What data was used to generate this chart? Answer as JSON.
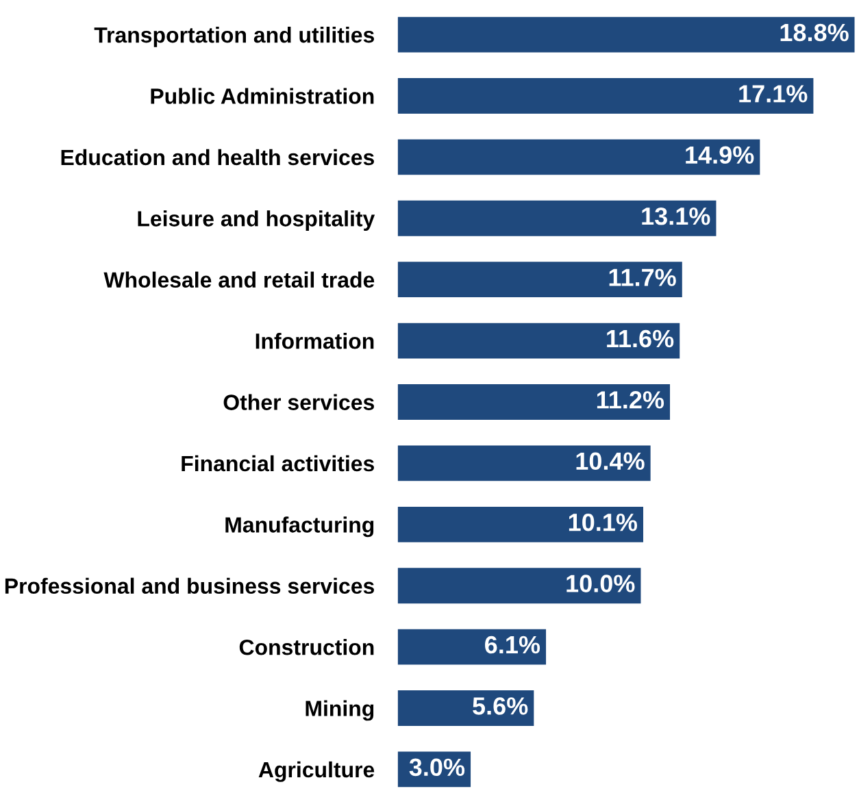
{
  "chart_data": {
    "type": "bar",
    "orientation": "horizontal",
    "categories": [
      "Transportation and utilities",
      "Public Administration",
      "Education and health services",
      "Leisure and hospitality",
      "Wholesale and retail trade",
      "Information",
      "Other services",
      "Financial activities",
      "Manufacturing",
      "Professional and business services",
      "Construction",
      "Mining",
      "Agriculture"
    ],
    "values": [
      18.8,
      17.1,
      14.9,
      13.1,
      11.7,
      11.6,
      11.2,
      10.4,
      10.1,
      10.0,
      6.1,
      5.6,
      3.0
    ],
    "value_labels": [
      "18.8%",
      "17.1%",
      "14.9%",
      "13.1%",
      "11.7%",
      "11.6%",
      "11.2%",
      "10.4%",
      "10.1%",
      "10.0%",
      "6.1%",
      "5.6%",
      "3.0%"
    ],
    "color": "#1f497d",
    "grid": false,
    "legend": false
  }
}
